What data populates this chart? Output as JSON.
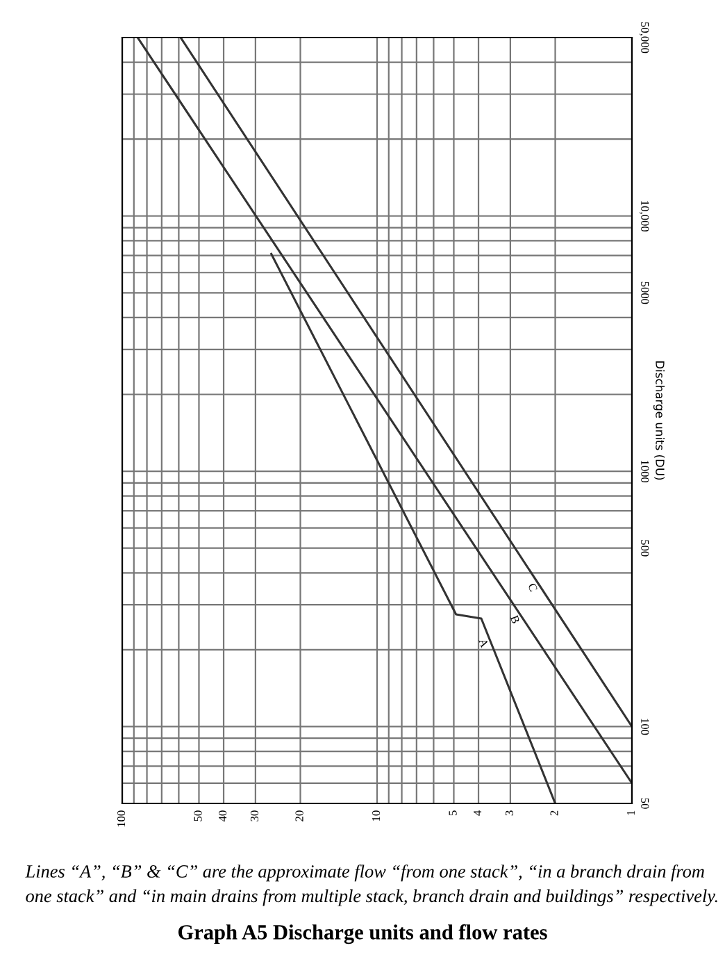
{
  "chart_data": {
    "type": "line",
    "title": "Graph A5 Discharge units and flow rates",
    "ylabel": "Discharge units (DU)",
    "annotations": [
      {
        "text": "A",
        "x": 3.85,
        "y": 212
      },
      {
        "text": "B",
        "x": 2.9,
        "y": 262
      },
      {
        "text": "C",
        "x": 2.47,
        "y": 350
      },
      "Lines “A”, “B” & “C” are the approximate flow “from one stack”, “in a branch drain from one stack” and “in main drains from multiple stack, branch drain and buildings” respectively."
    ],
    "log": "xy",
    "xlim": [
      100,
      1
    ],
    "xticks": [
      100,
      50,
      40,
      30,
      20,
      10,
      5,
      4,
      3,
      2,
      1
    ],
    "ylim": [
      50,
      50000
    ],
    "yticks": [
      50,
      100,
      500,
      1000,
      5000,
      {
        "value": 10000,
        "label": "10,000"
      },
      {
        "value": 50000,
        "label": "50,000"
      }
    ],
    "grid": true,
    "legend": false,
    "marker": "none",
    "line_style": "solid",
    "series": [
      {
        "color": "#333333",
        "x": [
          26,
          4.9,
          3.9,
          2
        ],
        "values": [
          7100,
          275,
          265,
          50
        ]
      },
      {
        "color": "#333333",
        "x": [
          87,
          1
        ],
        "values": [
          50000,
          60
        ]
      },
      {
        "color": "#333333",
        "x": [
          59,
          1
        ],
        "values": [
          50000,
          100
        ]
      }
    ]
  }
}
